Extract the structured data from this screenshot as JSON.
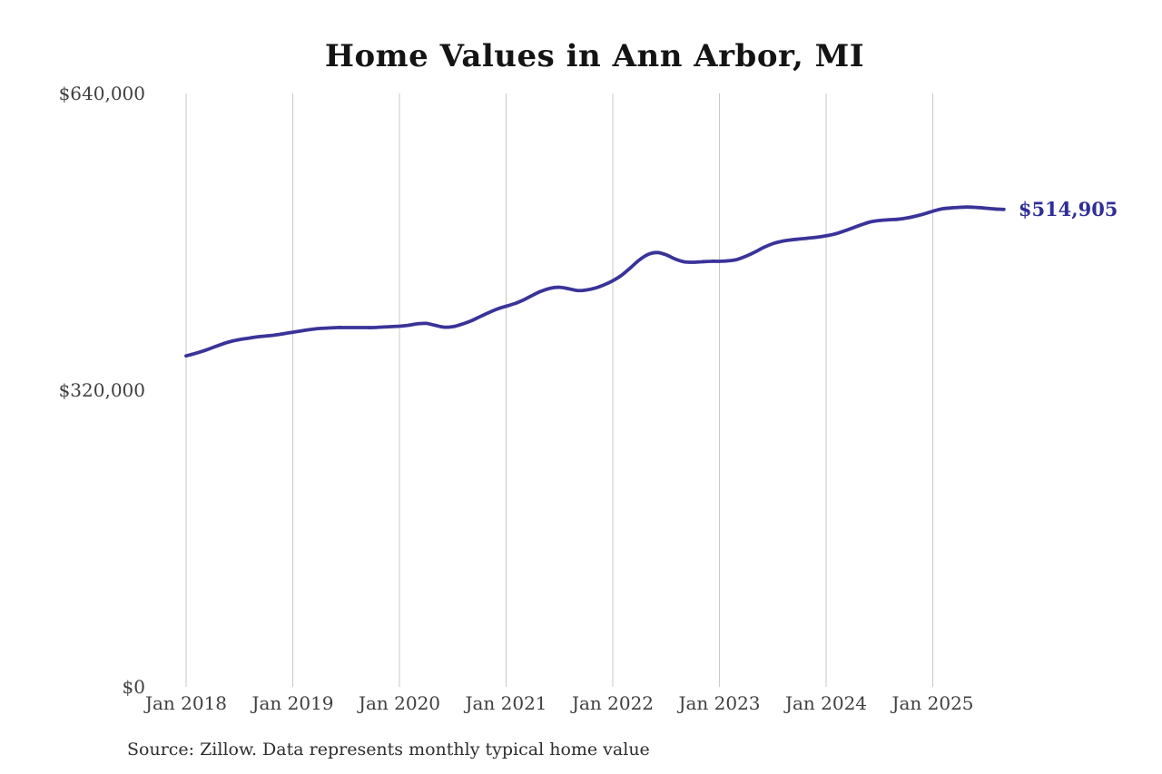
{
  "chart": {
    "title": "Home Values in Ann Arbor, MI",
    "end_label": "$514,905",
    "source_note": "Source: Zillow. Data represents monthly typical home value",
    "colors": {
      "line": "#3a3399",
      "end_label_text": "#302e97",
      "gridline": "#c9c9c9",
      "axis_text": "#3f3f3f",
      "title_text": "#141414",
      "background": "#ffffff"
    }
  },
  "chart_data": {
    "type": "line",
    "title": "Home Values in Ann Arbor, MI",
    "xlabel": "",
    "ylabel": "",
    "currency": "USD",
    "frequency": "monthly",
    "x_start": "2018-01",
    "x_end": "2025-09",
    "ylim": [
      0,
      640000
    ],
    "grid": "vertical-only",
    "legend": "none",
    "y_ticks": [
      {
        "label": "$640,000",
        "value": 640000
      },
      {
        "label": "$320,000",
        "value": 320000
      },
      {
        "label": "$0",
        "value": 0
      }
    ],
    "x_ticks": [
      "Jan 2018",
      "Jan 2019",
      "Jan 2020",
      "Jan 2021",
      "Jan 2022",
      "Jan 2023",
      "Jan 2024",
      "Jan 2025"
    ],
    "end_value": 514905,
    "series": [
      {
        "name": "Monthly typical home value",
        "values": [
          357000,
          359500,
          362500,
          366000,
          369500,
          372500,
          374500,
          376000,
          377500,
          378500,
          379500,
          381000,
          382500,
          384000,
          385500,
          386500,
          387000,
          387500,
          387500,
          387500,
          387500,
          387500,
          388000,
          388500,
          389000,
          390000,
          391500,
          392000,
          390000,
          388000,
          388500,
          391000,
          394500,
          399000,
          403500,
          407500,
          410500,
          413500,
          417500,
          422500,
          427000,
          430000,
          431000,
          429500,
          427500,
          428000,
          430000,
          433500,
          438000,
          444000,
          452000,
          460500,
          466500,
          468500,
          466000,
          461500,
          458500,
          458000,
          458500,
          459000,
          459000,
          459500,
          461000,
          464500,
          469000,
          474000,
          478000,
          480500,
          482000,
          483000,
          484000,
          485000,
          486500,
          488500,
          491500,
          495000,
          498500,
          501500,
          503000,
          503800,
          504300,
          505500,
          507500,
          510000,
          513000,
          515500,
          516500,
          517200,
          517500,
          517000,
          516200,
          515400,
          514905
        ]
      }
    ]
  }
}
